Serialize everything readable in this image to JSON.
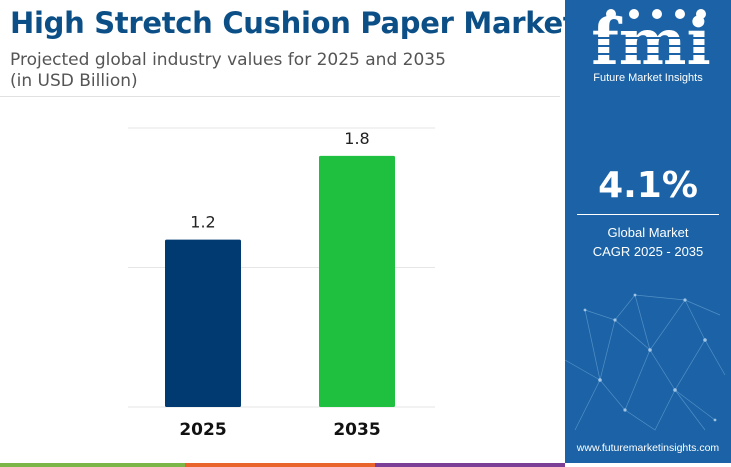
{
  "title": "High Stretch Cushion Paper Market",
  "subtitle_line1": "Projected global industry values for 2025 and 2035",
  "subtitle_line2": "(in USD Billion)",
  "chart_data": {
    "type": "bar",
    "categories": [
      "2025",
      "2035"
    ],
    "values": [
      1.2,
      1.8
    ],
    "value_labels": [
      "1.2",
      "1.8"
    ],
    "colors": [
      "#003a70",
      "#1fbf3f"
    ],
    "title": "High Stretch Cushion Paper Market",
    "xlabel": "",
    "ylabel": "",
    "ylim": [
      0,
      2.0
    ],
    "grid": true,
    "legend": "none"
  },
  "side_panel": {
    "logo_letters": "fmi",
    "logo_text": "Future Market Insights",
    "cagr_value": "4.1%",
    "cagr_label_line1": "Global Market",
    "cagr_label_line2": "CAGR 2025 - 2035",
    "website": "www.futuremarketinsights.com",
    "background_color": "#1b63a6"
  },
  "bottom_stripe_colors": [
    "#7ab648",
    "#e8642c",
    "#7b3f98"
  ]
}
